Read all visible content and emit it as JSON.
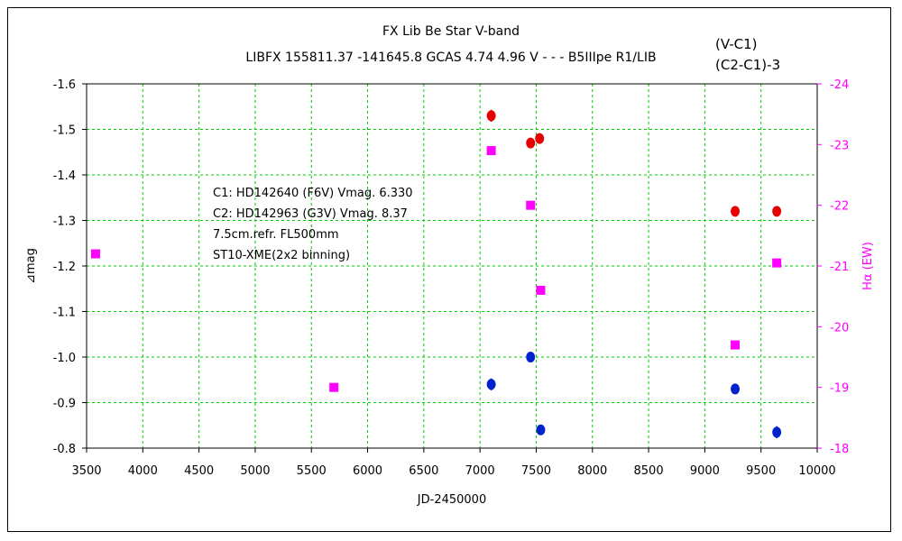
{
  "titles": {
    "line1": "FX Lib    Be Star    V-band",
    "line2": "LIBFX 155811.37 -141645.8 GCAS 4.74 4.96 V - - - B5IIIpe R1/LIB"
  },
  "legend": {
    "vc1": "(V-C1)",
    "c2c1": "(C2-C1)-3"
  },
  "notes": [
    "C1: HD142640 (F6V) Vmag. 6.330",
    "C2: HD142963 (G3V)  Vmag. 8.37",
    "7.5cm.refr. FL500mm",
    "ST10-XME(2x2 binning)"
  ],
  "colors": {
    "vc1": "#e60000",
    "c2c1": "#0022cc",
    "halpha": "#ff00ff",
    "grid": "#00cc00"
  },
  "chart_data": {
    "type": "scatter",
    "xlabel": "JD-2450000",
    "ylabel": "⊿mag",
    "y2label": "Hα (EW)",
    "xlim": [
      3500,
      10000
    ],
    "ylim": [
      -1.6,
      -0.8
    ],
    "y2lim": [
      -24,
      -18
    ],
    "xticks": [
      3500,
      4000,
      4500,
      5000,
      5500,
      6000,
      6500,
      7000,
      7500,
      8000,
      8500,
      9000,
      9500,
      10000
    ],
    "yticks": [
      -1.6,
      -1.5,
      -1.4,
      -1.3,
      -1.2,
      -1.1,
      -1.0,
      -0.9,
      -0.8
    ],
    "ytick_labels": [
      "-1.6",
      "-1.5",
      "-1.4",
      "-1.3",
      "-1.2",
      "-1.1",
      "-1.0",
      "-0.9",
      "-0.8"
    ],
    "y2ticks": [
      -24,
      -23,
      -22,
      -21,
      -20,
      -19,
      -18
    ],
    "grid": true,
    "series": [
      {
        "name": "(V-C1)",
        "axis": "left",
        "marker": "circle",
        "points": [
          {
            "x": 7100,
            "y": -1.53,
            "err": 0.013
          },
          {
            "x": 7450,
            "y": -1.47,
            "err": 0.005
          },
          {
            "x": 7530,
            "y": -1.48,
            "err": 0.008
          },
          {
            "x": 9270,
            "y": -1.32,
            "err": 0.004
          },
          {
            "x": 9640,
            "y": -1.32,
            "err": 0.004
          }
        ]
      },
      {
        "name": "(C2-C1)-3",
        "axis": "left",
        "marker": "circle",
        "points": [
          {
            "x": 7100,
            "y": -0.94,
            "err": 0.013
          },
          {
            "x": 7450,
            "y": -1.0,
            "err": 0.009
          },
          {
            "x": 7540,
            "y": -0.84,
            "err": 0.008
          },
          {
            "x": 9270,
            "y": -0.93,
            "err": 0.005
          },
          {
            "x": 9640,
            "y": -0.835,
            "err": 0.013
          }
        ]
      },
      {
        "name": "Hα (EW)",
        "axis": "right",
        "marker": "square",
        "points": [
          {
            "x": 3580,
            "y": -21.2
          },
          {
            "x": 5700,
            "y": -19.0
          },
          {
            "x": 7100,
            "y": -22.9
          },
          {
            "x": 7450,
            "y": -22.0
          },
          {
            "x": 7540,
            "y": -20.6
          },
          {
            "x": 9270,
            "y": -19.7
          },
          {
            "x": 9640,
            "y": -21.05
          }
        ]
      }
    ]
  }
}
